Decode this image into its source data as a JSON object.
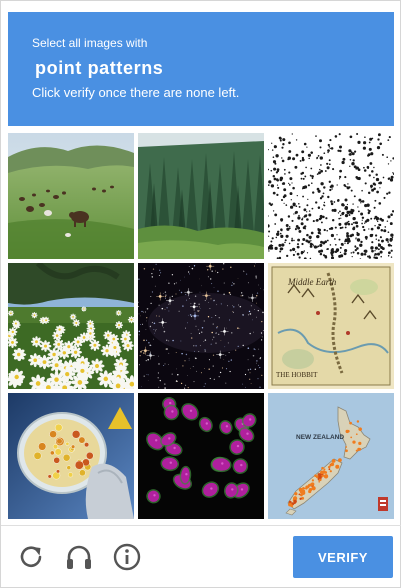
{
  "header": {
    "line1": "Select all images with",
    "keyword": "point patterns",
    "line3": "Click verify once there are none left."
  },
  "tiles": [
    {
      "name": "tile-grazing-animals-field",
      "subject": "bison grazing on a grassy hillside"
    },
    {
      "name": "tile-pine-forest",
      "subject": "dense conifer forest"
    },
    {
      "name": "tile-random-dot-pattern",
      "subject": "black dots scattered on white"
    },
    {
      "name": "tile-daisy-field",
      "subject": "field of white daisies under a tree"
    },
    {
      "name": "tile-star-field",
      "subject": "stars against dark night sky"
    },
    {
      "name": "tile-middle-earth-map",
      "subject": "illustrated fantasy map"
    },
    {
      "name": "tile-petri-dish",
      "subject": "gloved hand holding a petri dish with colonies"
    },
    {
      "name": "tile-stained-cell-nuclei",
      "subject": "magenta stained cell nuclei on black"
    },
    {
      "name": "tile-new-zealand-map",
      "subject": "map of New Zealand with orange points"
    }
  ],
  "map_labels": {
    "fantasy_title": "Middle Earth",
    "fantasy_sub": "THE HOBBIT",
    "nz_title": "NEW ZEALAND"
  },
  "footer": {
    "reload_icon": "reload-icon",
    "audio_icon": "headphones-icon",
    "info_icon": "info-icon",
    "verify_label": "VERIFY"
  },
  "colors": {
    "accent": "#4a90e2",
    "icon_gray": "#555555"
  }
}
